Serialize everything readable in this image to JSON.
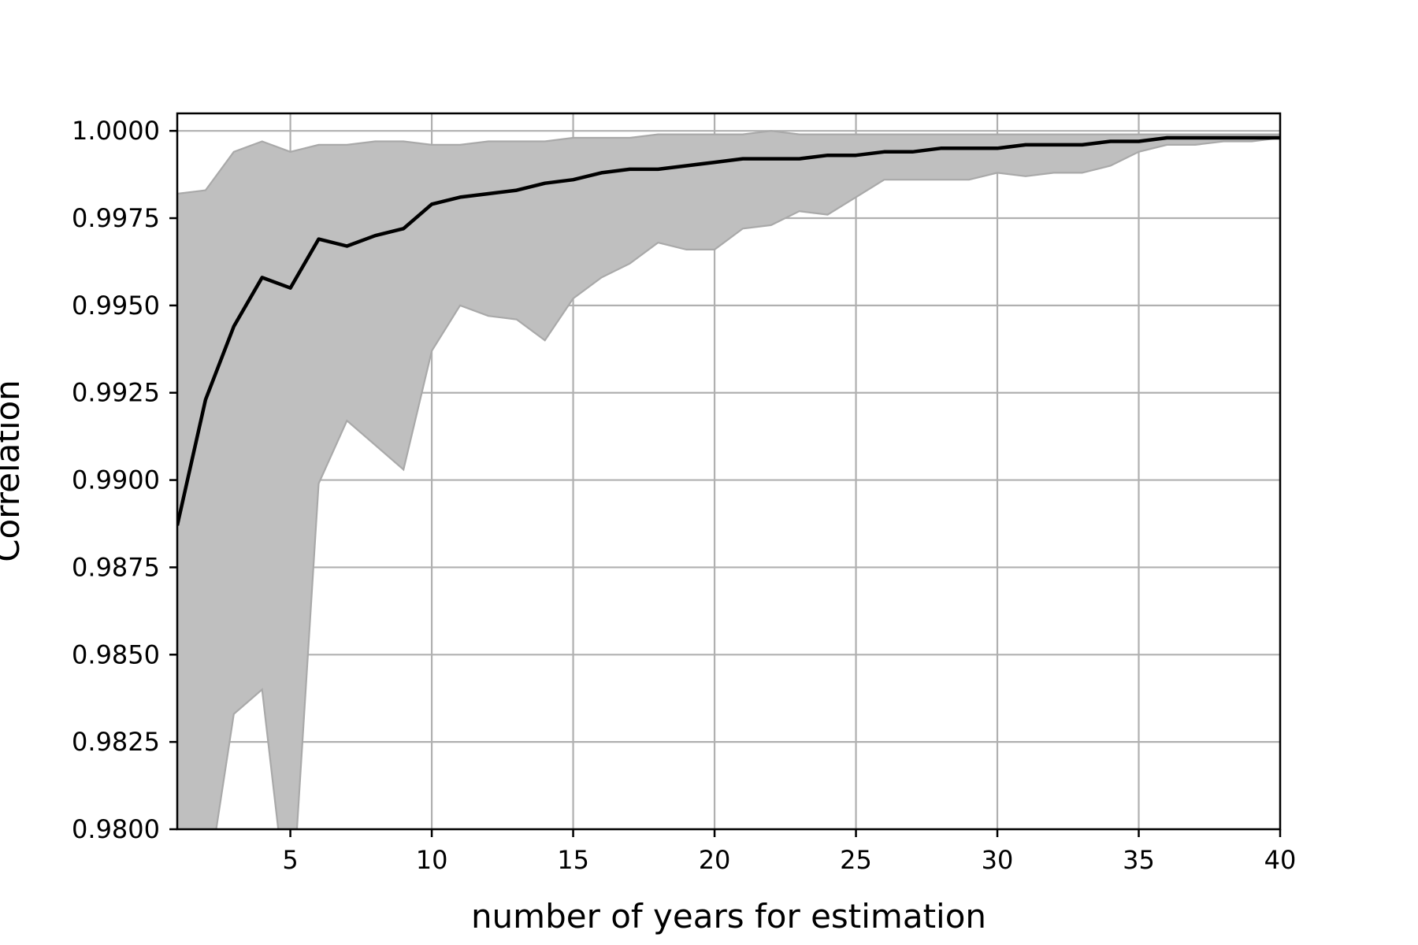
{
  "chart_data": {
    "type": "area",
    "title": "",
    "xlabel": "number of years for estimation",
    "ylabel": "Correlation",
    "xlim": [
      1,
      40
    ],
    "ylim": [
      0.98,
      1.0005
    ],
    "grid": true,
    "xticks": [
      5,
      10,
      15,
      20,
      25,
      30,
      35,
      40
    ],
    "xtick_labels": [
      "5",
      "10",
      "15",
      "20",
      "25",
      "30",
      "35",
      "40"
    ],
    "yticks": [
      0.98,
      0.9825,
      0.985,
      0.9875,
      0.99,
      0.9925,
      0.995,
      0.9975,
      1.0
    ],
    "ytick_labels": [
      "0.9800",
      "0.9825",
      "0.9850",
      "0.9875",
      "0.9900",
      "0.9925",
      "0.9950",
      "0.9975",
      "1.0000"
    ],
    "x": [
      1,
      2,
      3,
      4,
      5,
      6,
      7,
      8,
      9,
      10,
      11,
      12,
      13,
      14,
      15,
      16,
      17,
      18,
      19,
      20,
      21,
      22,
      23,
      24,
      25,
      26,
      27,
      28,
      29,
      30,
      31,
      32,
      33,
      34,
      35,
      36,
      37,
      38,
      39,
      40
    ],
    "series": [
      {
        "values": [
          0.9887,
          0.9923,
          0.9944,
          0.9958,
          0.9955,
          0.9969,
          0.9967,
          0.997,
          0.9972,
          0.9979,
          0.9981,
          0.9982,
          0.9983,
          0.9985,
          0.9986,
          0.9988,
          0.9989,
          0.9989,
          0.999,
          0.9991,
          0.9992,
          0.9992,
          0.9992,
          0.9993,
          0.9993,
          0.9994,
          0.9994,
          0.9995,
          0.9995,
          0.9995,
          0.9996,
          0.9996,
          0.9996,
          0.9997,
          0.9997,
          0.9998,
          0.9998,
          0.9998,
          0.9998,
          0.9998
        ]
      }
    ],
    "band": {
      "upper": [
        0.9982,
        0.9983,
        0.9994,
        0.9997,
        0.9994,
        0.9996,
        0.9996,
        0.9997,
        0.9997,
        0.9996,
        0.9996,
        0.9997,
        0.9997,
        0.9997,
        0.9998,
        0.9998,
        0.9998,
        0.9999,
        0.9999,
        0.9999,
        0.9999,
        1.0,
        0.9999,
        0.9999,
        0.9999,
        0.9999,
        0.9999,
        0.9999,
        0.9999,
        0.9999,
        0.9999,
        0.9999,
        0.9999,
        0.9999,
        0.9999,
        0.9999,
        0.9999,
        0.9999,
        0.9999,
        0.9999
      ],
      "lower": [
        0.978,
        0.978,
        0.9833,
        0.984,
        0.977,
        0.9899,
        0.9917,
        0.991,
        0.9903,
        0.9937,
        0.995,
        0.9947,
        0.9946,
        0.994,
        0.9952,
        0.9958,
        0.9962,
        0.9968,
        0.9966,
        0.9966,
        0.9972,
        0.9973,
        0.9977,
        0.9976,
        0.9981,
        0.9986,
        0.9986,
        0.9986,
        0.9986,
        0.9988,
        0.9987,
        0.9988,
        0.9988,
        0.999,
        0.9994,
        0.9996,
        0.9996,
        0.9997,
        0.9997,
        0.9998
      ]
    }
  }
}
